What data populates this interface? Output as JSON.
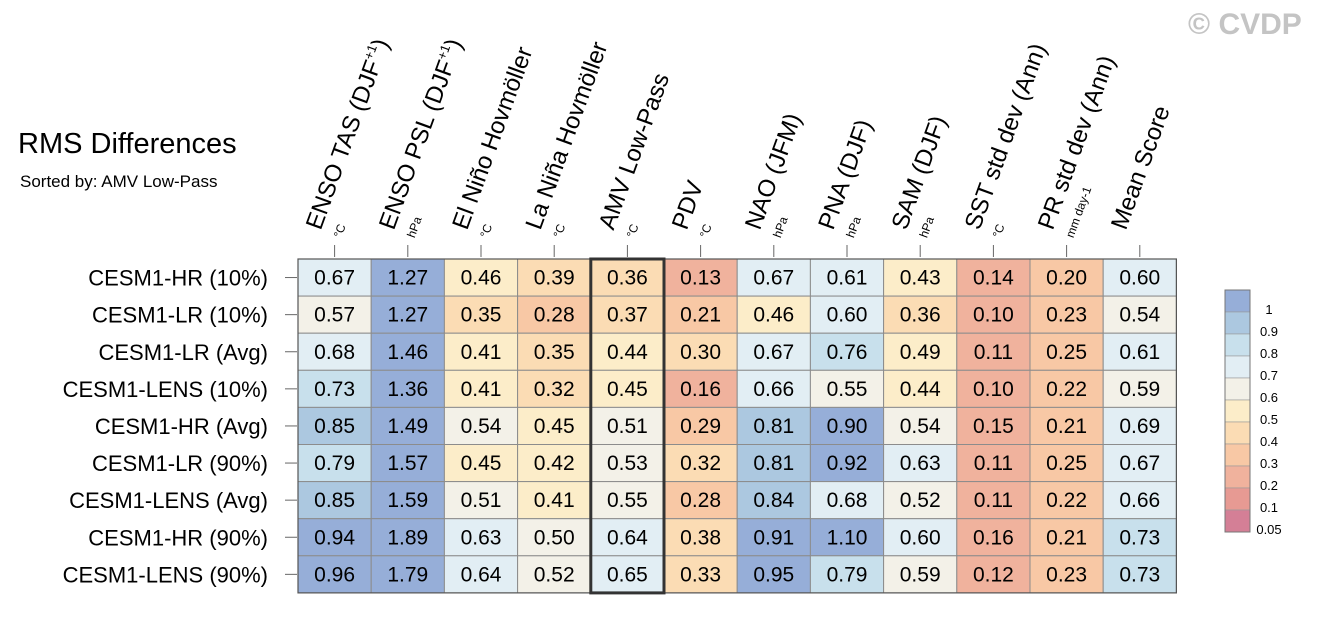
{
  "title": "RMS Differences",
  "subtitle": "Sorted by: AMV Low-Pass",
  "watermark": "© CVDP",
  "colors": {
    "cell_border": "#8c8c8c",
    "highlight_border": "#333333",
    "scale": [
      "#d47f96",
      "#e79a93",
      "#f0b29d",
      "#f8c8a5",
      "#fbdcb4",
      "#fcedc9",
      "#f3f1e8",
      "#e2eef4",
      "#c8e0ec",
      "#acc8e0",
      "#96aed8"
    ]
  },
  "chart_data": {
    "type": "heatmap",
    "title": "RMS Differences",
    "subtitle": "Sorted by: AMV Low-Pass",
    "columns": [
      {
        "label": "ENSO TAS (DJF+1)",
        "unit": "°C"
      },
      {
        "label": "ENSO PSL (DJF+1)",
        "unit": "hPa"
      },
      {
        "label": "El Niño Hovmöller",
        "unit": "°C"
      },
      {
        "label": "La Niña Hovmöller",
        "unit": "°C"
      },
      {
        "label": "AMV Low-Pass",
        "unit": "°C"
      },
      {
        "label": "PDV",
        "unit": "°C"
      },
      {
        "label": "NAO (JFM)",
        "unit": "hPa"
      },
      {
        "label": "PNA (DJF)",
        "unit": "hPa"
      },
      {
        "label": "SAM (DJF)",
        "unit": "hPa"
      },
      {
        "label": "SST std dev (Ann)",
        "unit": "°C"
      },
      {
        "label": "PR std dev (Ann)",
        "unit": "mm day-1"
      },
      {
        "label": "Mean Score",
        "unit": ""
      }
    ],
    "rows": [
      "CESM1-HR (10%)",
      "CESM1-LR (10%)",
      "CESM1-LR (Avg)",
      "CESM1-LENS (10%)",
      "CESM1-HR (Avg)",
      "CESM1-LR (90%)",
      "CESM1-LENS (Avg)",
      "CESM1-HR (90%)",
      "CESM1-LENS (90%)"
    ],
    "values": [
      [
        "0.67",
        "1.27",
        "0.46",
        "0.39",
        "0.36",
        "0.13",
        "0.67",
        "0.61",
        "0.43",
        "0.14",
        "0.20",
        "0.60"
      ],
      [
        "0.57",
        "1.27",
        "0.35",
        "0.28",
        "0.37",
        "0.21",
        "0.46",
        "0.60",
        "0.36",
        "0.10",
        "0.23",
        "0.54"
      ],
      [
        "0.68",
        "1.46",
        "0.41",
        "0.35",
        "0.44",
        "0.30",
        "0.67",
        "0.76",
        "0.49",
        "0.11",
        "0.25",
        "0.61"
      ],
      [
        "0.73",
        "1.36",
        "0.41",
        "0.32",
        "0.45",
        "0.16",
        "0.66",
        "0.55",
        "0.44",
        "0.10",
        "0.22",
        "0.59"
      ],
      [
        "0.85",
        "1.49",
        "0.54",
        "0.45",
        "0.51",
        "0.29",
        "0.81",
        "0.90",
        "0.54",
        "0.15",
        "0.21",
        "0.69"
      ],
      [
        "0.79",
        "1.57",
        "0.45",
        "0.42",
        "0.53",
        "0.32",
        "0.81",
        "0.92",
        "0.63",
        "0.11",
        "0.25",
        "0.67"
      ],
      [
        "0.85",
        "1.59",
        "0.51",
        "0.41",
        "0.55",
        "0.28",
        "0.84",
        "0.68",
        "0.52",
        "0.11",
        "0.22",
        "0.66"
      ],
      [
        "0.94",
        "1.89",
        "0.63",
        "0.50",
        "0.64",
        "0.38",
        "0.91",
        "1.10",
        "0.60",
        "0.16",
        "0.21",
        "0.73"
      ],
      [
        "0.96",
        "1.79",
        "0.64",
        "0.52",
        "0.65",
        "0.33",
        "0.95",
        "0.79",
        "0.59",
        "0.12",
        "0.23",
        "0.73"
      ]
    ],
    "highlight_column": "AMV Low-Pass",
    "colorbar": {
      "levels": [
        "1",
        "0.9",
        "0.8",
        "0.7",
        "0.6",
        "0.5",
        "0.4",
        "0.3",
        "0.2",
        "0.1",
        "0.05"
      ],
      "boundaries": [
        0.05,
        0.1,
        0.2,
        0.3,
        0.4,
        0.5,
        0.6,
        0.7,
        0.8,
        0.9,
        1
      ]
    }
  }
}
